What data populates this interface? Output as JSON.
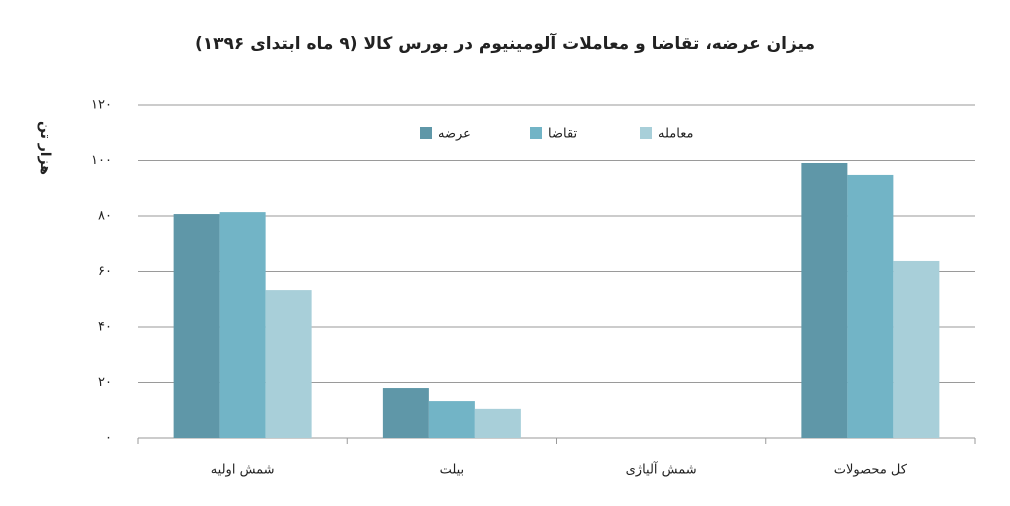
{
  "chart_data": {
    "type": "bar",
    "title": "میزان عرضه، تقاضا و معاملات آلومینیوم در بورس کالا (۹ ماه ابتدای ۱۳۹۶)",
    "y_label": "هزار تن",
    "categories": [
      "شمش اولیه",
      "بیلت",
      "شمش آلیاژی",
      "کل محصولات"
    ],
    "series": [
      {
        "name": "عرضه",
        "color": "#5f97a8",
        "values": [
          80.7,
          18,
          0,
          99.1
        ]
      },
      {
        "name": "تقاضا",
        "color": "#72b4c6",
        "values": [
          81.4,
          13.3,
          0,
          94.8
        ]
      },
      {
        "name": "معامله",
        "color": "#a8cfd9",
        "values": [
          53.3,
          10.5,
          0,
          63.8
        ]
      }
    ],
    "ylim": [
      0,
      120
    ],
    "yticks": [
      {
        "value": 0,
        "label": "۰"
      },
      {
        "value": 20,
        "label": "۲۰"
      },
      {
        "value": 40,
        "label": "۴۰"
      },
      {
        "value": 60,
        "label": "۶۰"
      },
      {
        "value": 80,
        "label": "۸۰"
      },
      {
        "value": 100,
        "label": "۱۰۰"
      },
      {
        "value": 120,
        "label": "۱۲۰"
      }
    ],
    "grid": true,
    "legend": "top"
  }
}
